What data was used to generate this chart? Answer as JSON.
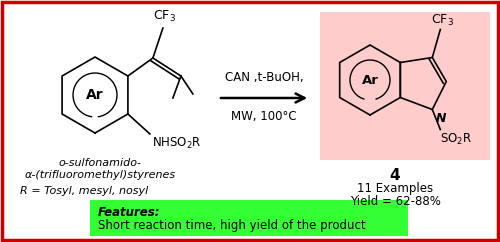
{
  "bg_color": "#ffffff",
  "border_color": "#cc0000",
  "green_box_color": "#33ff33",
  "pink_box_color": "#ffcccc",
  "features_text": "Features:",
  "features_detail": "Short reaction time, high yield of the product",
  "reaction_conditions_1": "CAN ,t-BuOH,",
  "reaction_conditions_2": "MW, 100°C",
  "product_label": "4",
  "product_info_1": "11 Examples",
  "product_info_2": "Yield = 62-88%",
  "r_label": "R = Tosyl, mesyl, nosyl",
  "reactant_label_1": "o-sulfonamido-",
  "reactant_label_2": "α-(trifluoromethyl)styrenes"
}
